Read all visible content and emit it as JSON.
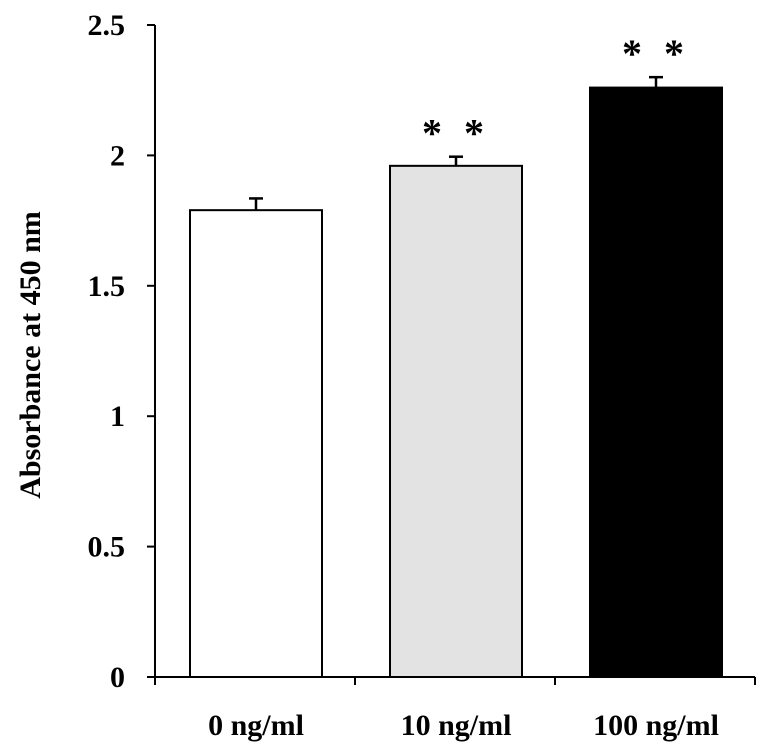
{
  "chart_data": {
    "type": "bar",
    "title": "",
    "xlabel": "",
    "ylabel": "Absorbance at 450 nm",
    "ylim": [
      0,
      2.5
    ],
    "yticks": [
      0,
      0.5,
      1,
      1.5,
      2,
      2.5
    ],
    "ytick_labels": [
      "0",
      "0.5",
      "1",
      "1.5",
      "2",
      "2.5"
    ],
    "categories": [
      "0 ng/ml",
      "10 ng/ml",
      "100 ng/ml"
    ],
    "values": [
      1.79,
      1.96,
      2.26
    ],
    "errors": [
      0.045,
      0.035,
      0.04
    ],
    "colors": [
      "#ffffff",
      "#e3e3e3",
      "#000000"
    ],
    "annotations": [
      "",
      "* *",
      "* *"
    ],
    "grid": false,
    "legend": "none"
  }
}
